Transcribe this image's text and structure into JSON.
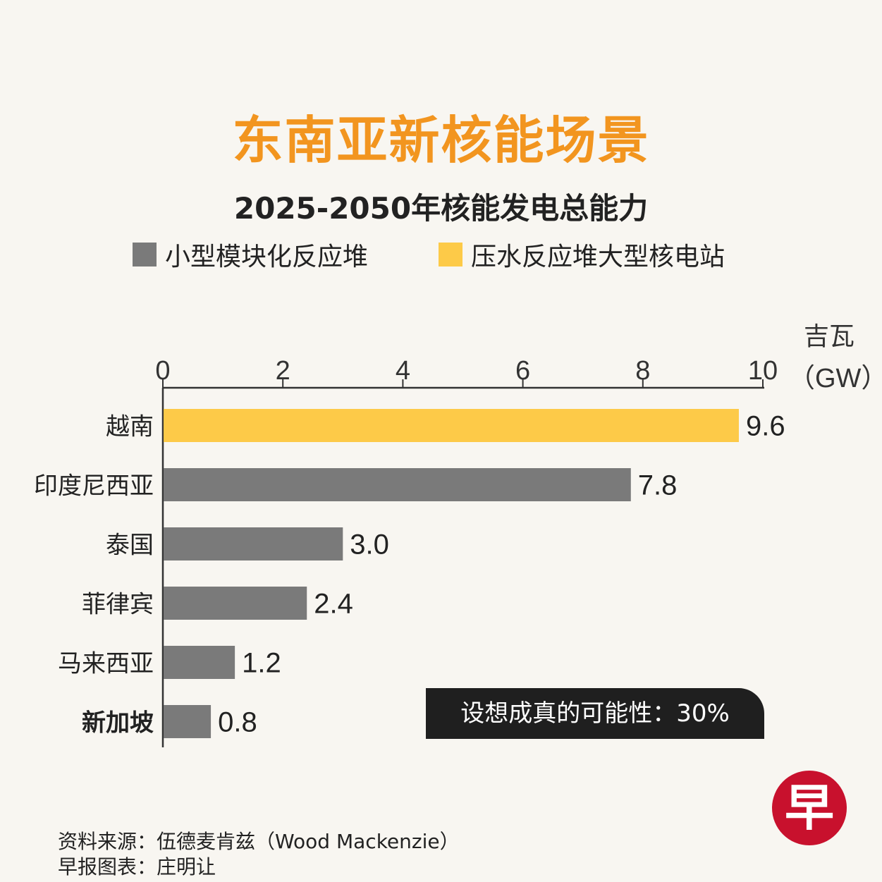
{
  "header": {
    "title": "东南亚新核能场景",
    "subtitle": "2025-2050年核能发电总能力"
  },
  "legend": [
    {
      "label": "小型模块化反应堆",
      "color": "#7a7a7a"
    },
    {
      "label": "压水反应堆大型核电站",
      "color": "#fdca48"
    }
  ],
  "unit": {
    "cn": "吉瓦",
    "en": "（GW）"
  },
  "chart_data": {
    "type": "bar",
    "orientation": "horizontal",
    "title": "东南亚新核能场景",
    "subtitle": "2025-2050年核能发电总能力",
    "xlabel": "吉瓦（GW）",
    "xlim": [
      0,
      10
    ],
    "xticks": [
      0,
      2,
      4,
      6,
      8,
      10
    ],
    "categories": [
      "越南",
      "印度尼西亚",
      "泰国",
      "菲律宾",
      "马来西亚",
      "新加坡"
    ],
    "values": [
      9.6,
      7.8,
      3.0,
      2.4,
      1.2,
      0.8
    ],
    "value_labels": [
      "9.6",
      "7.8",
      "3.0",
      "2.4",
      "1.2",
      "0.8"
    ],
    "bar_types": [
      "压水反应堆大型核电站",
      "小型模块化反应堆",
      "小型模块化反应堆",
      "小型模块化反应堆",
      "小型模块化反应堆",
      "小型模块化反应堆"
    ],
    "bold_categories": [
      "新加坡"
    ],
    "series_colors": {
      "小型模块化反应堆": "#7a7a7a",
      "压水反应堆大型核电站": "#fdca48"
    }
  },
  "callout": {
    "text": "设想成真的可能性：30%"
  },
  "logo": {
    "text": "早"
  },
  "footer": {
    "source": "资料来源：伍德麦肯兹（Wood Mackenzie）",
    "credit": "早报图表：庄明让"
  }
}
